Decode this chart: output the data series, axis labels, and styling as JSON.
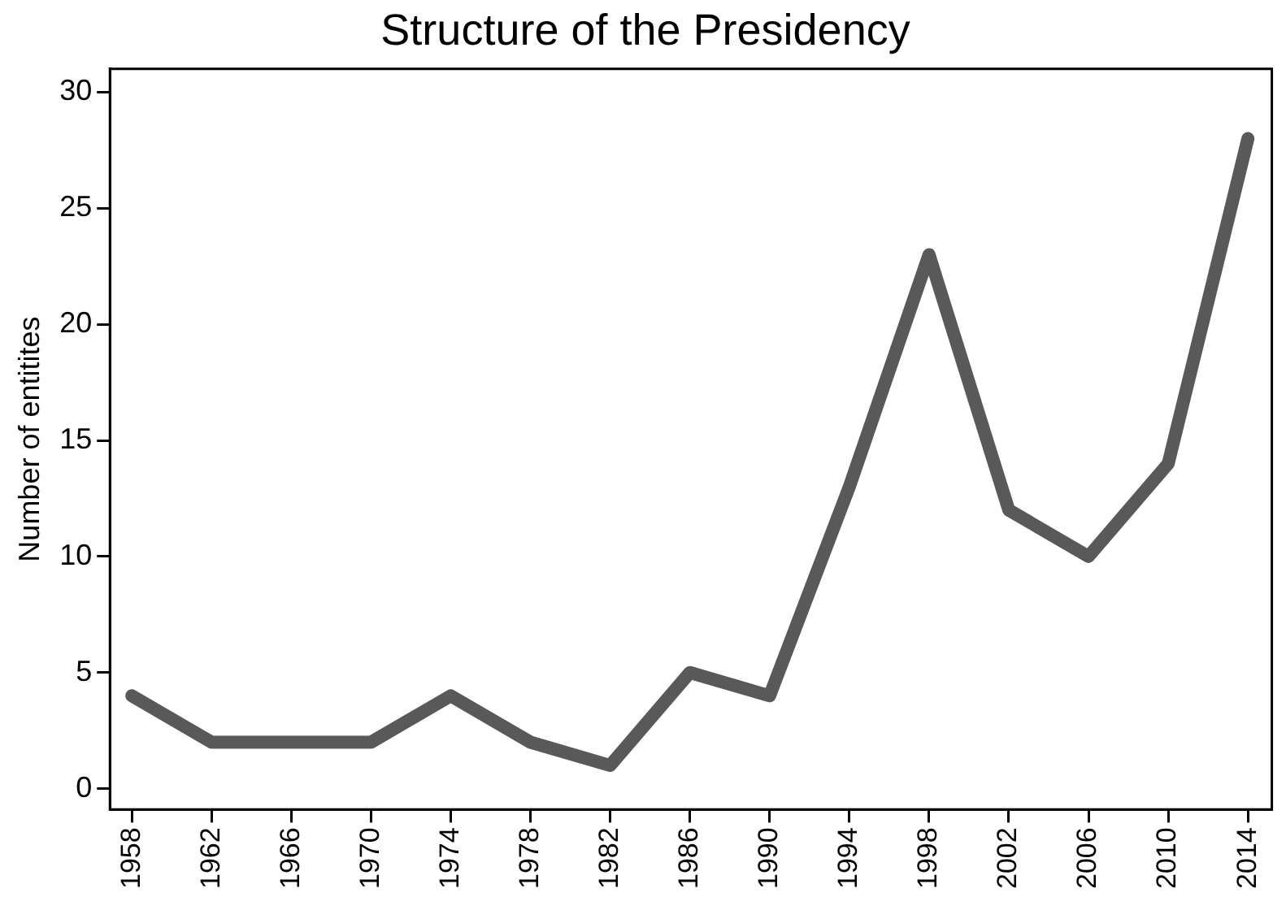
{
  "chart_data": {
    "type": "line",
    "title": "Structure of the Presidency",
    "ylabel": "Number of entitites",
    "x": [
      1958,
      1962,
      1966,
      1970,
      1974,
      1978,
      1982,
      1986,
      1990,
      1994,
      1998,
      2002,
      2006,
      2010,
      2014
    ],
    "series": [
      {
        "color": "#595959",
        "values": [
          4,
          2,
          2,
          2,
          4,
          2,
          1,
          5,
          4,
          13,
          23,
          12,
          10,
          14,
          28
        ]
      }
    ],
    "xlim": [
      1956.9,
      2015.2
    ],
    "xticks": [
      1958,
      1962,
      1966,
      1970,
      1974,
      1978,
      1982,
      1986,
      1990,
      1994,
      1998,
      2002,
      2006,
      2010,
      2014
    ],
    "ylim": [
      -0.9,
      31
    ],
    "yticks": [
      0,
      5,
      10,
      15,
      20,
      25,
      30
    ],
    "grid": false,
    "legend": false,
    "marker": "none",
    "line_style": "solid"
  }
}
